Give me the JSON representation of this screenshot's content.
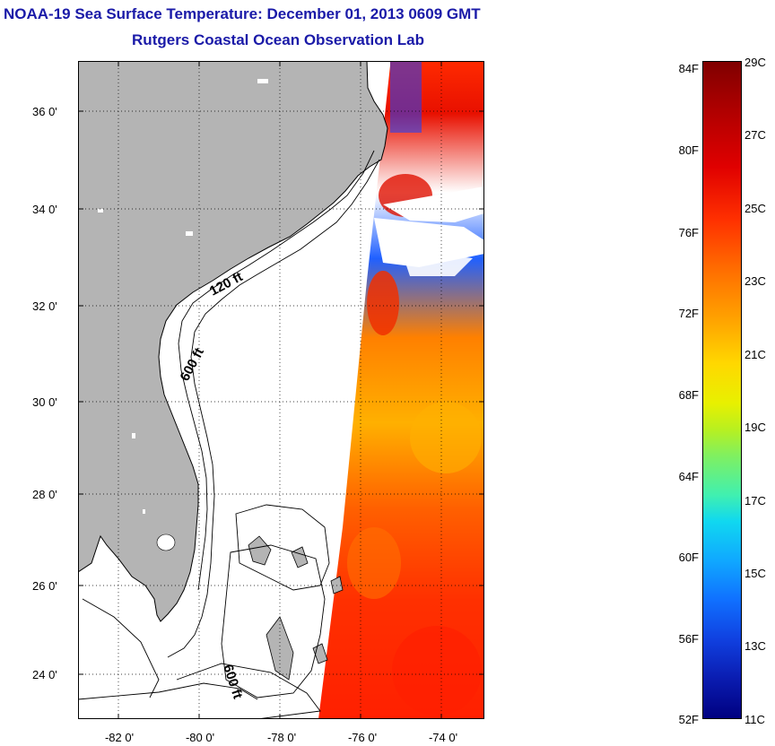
{
  "title": {
    "line1": "NOAA-19 Sea Surface Temperature:  December 01, 2013 0609 GMT",
    "line2": "Rutgers Coastal Ocean Observation Lab"
  },
  "map": {
    "lat_labels": [
      "36 0'",
      "34 0'",
      "32 0'",
      "30 0'",
      "28 0'",
      "26 0'",
      "24 0'"
    ],
    "lon_labels": [
      "-82 0'",
      "-80 0'",
      "-78 0'",
      "-76 0'",
      "-74 0'"
    ],
    "contour_labels": [
      "120 ft",
      "600 ft",
      "600 ft"
    ],
    "land_color": "#b4b4b4",
    "cloud_color": "#ffffff"
  },
  "colorbar": {
    "fahrenheit_labels": [
      "84F",
      "80F",
      "76F",
      "72F",
      "68F",
      "64F",
      "60F",
      "56F",
      "52F"
    ],
    "celsius_labels": [
      "29C",
      "27C",
      "25C",
      "23C",
      "21C",
      "19C",
      "17C",
      "15C",
      "13C",
      "11C"
    ],
    "range_c": [
      11,
      29
    ],
    "range_f": [
      52,
      84
    ]
  }
}
